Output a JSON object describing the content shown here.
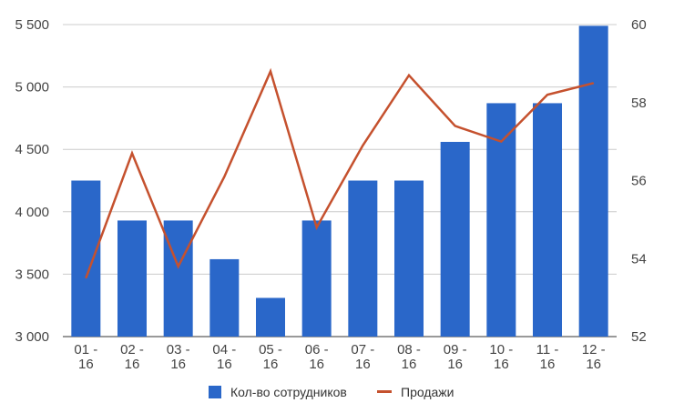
{
  "chart_data": {
    "type": "bar",
    "categories": [
      "01 - 16",
      "02 - 16",
      "03 - 16",
      "04 - 16",
      "05 - 16",
      "06 - 16",
      "07 - 16",
      "08 - 16",
      "09 - 16",
      "10 - 16",
      "11 - 16",
      "12 - 16"
    ],
    "series": [
      {
        "name": "Кол-во сотрудников",
        "type": "bar",
        "axis": "left",
        "color": "#2a67c9",
        "values": [
          4250,
          3930,
          3930,
          3620,
          3310,
          3930,
          4250,
          4250,
          4560,
          4870,
          4870,
          5490
        ]
      },
      {
        "name": "Продажи",
        "type": "line",
        "axis": "right",
        "color": "#c5512e",
        "values": [
          53.5,
          56.7,
          53.8,
          56.1,
          58.8,
          54.8,
          56.9,
          58.7,
          57.4,
          57.0,
          58.2,
          58.5
        ]
      }
    ],
    "y_left": {
      "min": 3000,
      "max": 5500,
      "ticks": [
        3000,
        3500,
        4000,
        4500,
        5000,
        5500
      ],
      "tick_labels": [
        "3 000",
        "3 500",
        "4 000",
        "4 500",
        "5 000",
        "5 500"
      ]
    },
    "y_right": {
      "min": 52,
      "max": 60,
      "ticks": [
        52,
        54,
        56,
        58,
        60
      ],
      "tick_labels": [
        "52",
        "54",
        "56",
        "58",
        "60"
      ]
    },
    "grid": true,
    "legend": "bottom",
    "title": "",
    "xlabel": "",
    "ylabel": ""
  }
}
